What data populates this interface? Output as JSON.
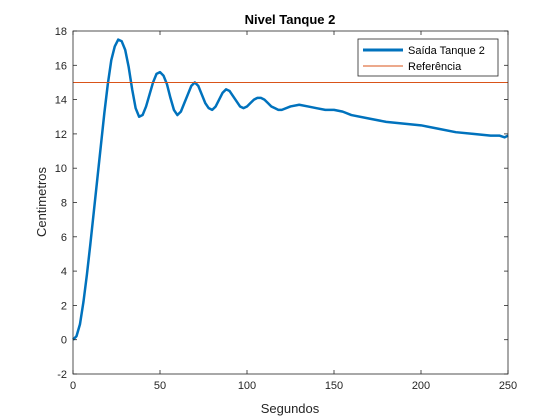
{
  "chart_data": {
    "type": "line",
    "title": "Nivel Tanque 2",
    "xlabel": "Segundos",
    "ylabel": "Centimetros",
    "xlim": [
      0,
      250
    ],
    "ylim": [
      -2,
      18
    ],
    "xticks": [
      0,
      50,
      100,
      150,
      200,
      250
    ],
    "yticks": [
      -2,
      0,
      2,
      4,
      6,
      8,
      10,
      12,
      14,
      16,
      18
    ],
    "grid": false,
    "legend_position": "top-right",
    "series": [
      {
        "name": "Saída Tanque 2",
        "color": "#0072BD",
        "x": [
          0,
          2,
          4,
          6,
          8,
          10,
          12,
          14,
          16,
          18,
          20,
          22,
          24,
          26,
          28,
          30,
          32,
          34,
          36,
          38,
          40,
          42,
          44,
          46,
          48,
          50,
          52,
          54,
          56,
          58,
          60,
          62,
          64,
          66,
          68,
          70,
          72,
          74,
          76,
          78,
          80,
          82,
          84,
          86,
          88,
          90,
          92,
          94,
          96,
          98,
          100,
          102,
          104,
          106,
          108,
          110,
          112,
          114,
          116,
          118,
          120,
          125,
          130,
          135,
          140,
          145,
          150,
          155,
          160,
          170,
          180,
          190,
          200,
          210,
          220,
          230,
          240,
          245,
          248,
          250
        ],
        "y": [
          0.0,
          0.2,
          0.9,
          2.2,
          3.8,
          5.6,
          7.5,
          9.4,
          11.3,
          13.2,
          14.9,
          16.3,
          17.1,
          17.5,
          17.4,
          16.9,
          15.9,
          14.6,
          13.5,
          13.0,
          13.1,
          13.6,
          14.3,
          15.0,
          15.5,
          15.6,
          15.4,
          14.9,
          14.1,
          13.4,
          13.1,
          13.3,
          13.8,
          14.3,
          14.8,
          15.0,
          14.8,
          14.3,
          13.8,
          13.5,
          13.4,
          13.6,
          14.0,
          14.4,
          14.6,
          14.5,
          14.2,
          13.9,
          13.6,
          13.5,
          13.6,
          13.8,
          14.0,
          14.1,
          14.1,
          14.0,
          13.8,
          13.6,
          13.5,
          13.4,
          13.4,
          13.6,
          13.7,
          13.6,
          13.5,
          13.4,
          13.4,
          13.3,
          13.1,
          12.9,
          12.7,
          12.6,
          12.5,
          12.3,
          12.1,
          12.0,
          11.9,
          11.9,
          11.8,
          11.9
        ]
      },
      {
        "name": "Referência",
        "color": "#D95319",
        "x": [
          0,
          250
        ],
        "y": [
          15,
          15
        ]
      }
    ]
  }
}
